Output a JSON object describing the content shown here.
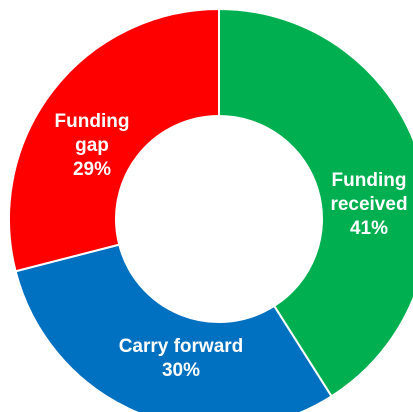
{
  "chart_data": {
    "type": "pie",
    "style": "donut",
    "title": "",
    "slices": [
      {
        "label_lines": [
          "Funding",
          "received",
          "41%"
        ],
        "value": 41,
        "color": "#00b050"
      },
      {
        "label_lines": [
          "Carry forward",
          "30%"
        ],
        "value": 30,
        "color": "#0070c0"
      },
      {
        "label_lines": [
          "Funding",
          "gap",
          "29%"
        ],
        "value": 29,
        "color": "#ff0000"
      }
    ],
    "start_angle_deg": 0,
    "direction": "clockwise",
    "separator_color": "#ffffff"
  }
}
